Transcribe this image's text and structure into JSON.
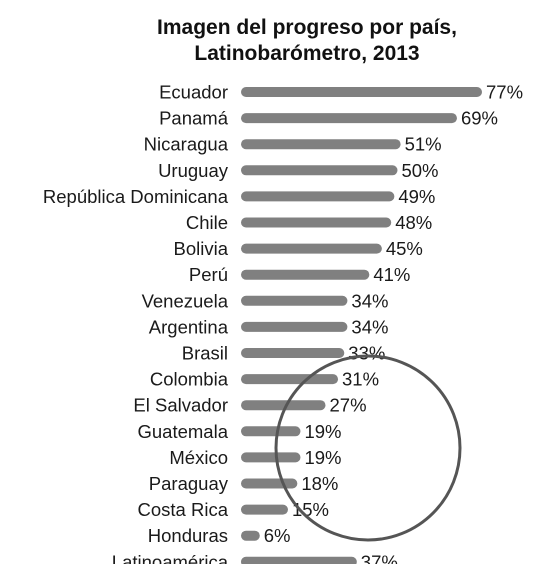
{
  "chart_data": {
    "type": "bar",
    "orientation": "horizontal",
    "title": "Imagen del progreso por país,",
    "subtitle": "Latinobarómetro, 2013",
    "categories": [
      "Ecuador",
      "Panamá",
      "Nicaragua",
      "Uruguay",
      "República Dominicana",
      "Chile",
      "Bolivia",
      "Perú",
      "Venezuela",
      "Argentina",
      "Brasil",
      "Colombia",
      "El Salvador",
      "Guatemala",
      "México",
      "Paraguay",
      "Costa Rica",
      "Honduras",
      "Latinoamérica"
    ],
    "values": [
      77,
      69,
      51,
      50,
      49,
      48,
      45,
      41,
      34,
      34,
      33,
      31,
      27,
      19,
      19,
      18,
      15,
      6,
      37
    ],
    "value_labels": [
      "77%",
      "69%",
      "51%",
      "50%",
      "49%",
      "48%",
      "45%",
      "41%",
      "34%",
      "34%",
      "33%",
      "31%",
      "27%",
      "19%",
      "19%",
      "18%",
      "15%",
      "6%",
      "37%"
    ],
    "xlim": [
      0,
      77
    ],
    "grid": false,
    "legend": "none",
    "colors": {
      "bar": "#808080",
      "text": "#1a1a1a",
      "highlight_circle": "#555555"
    },
    "annotation": "circle highlighting the lowest countries"
  }
}
